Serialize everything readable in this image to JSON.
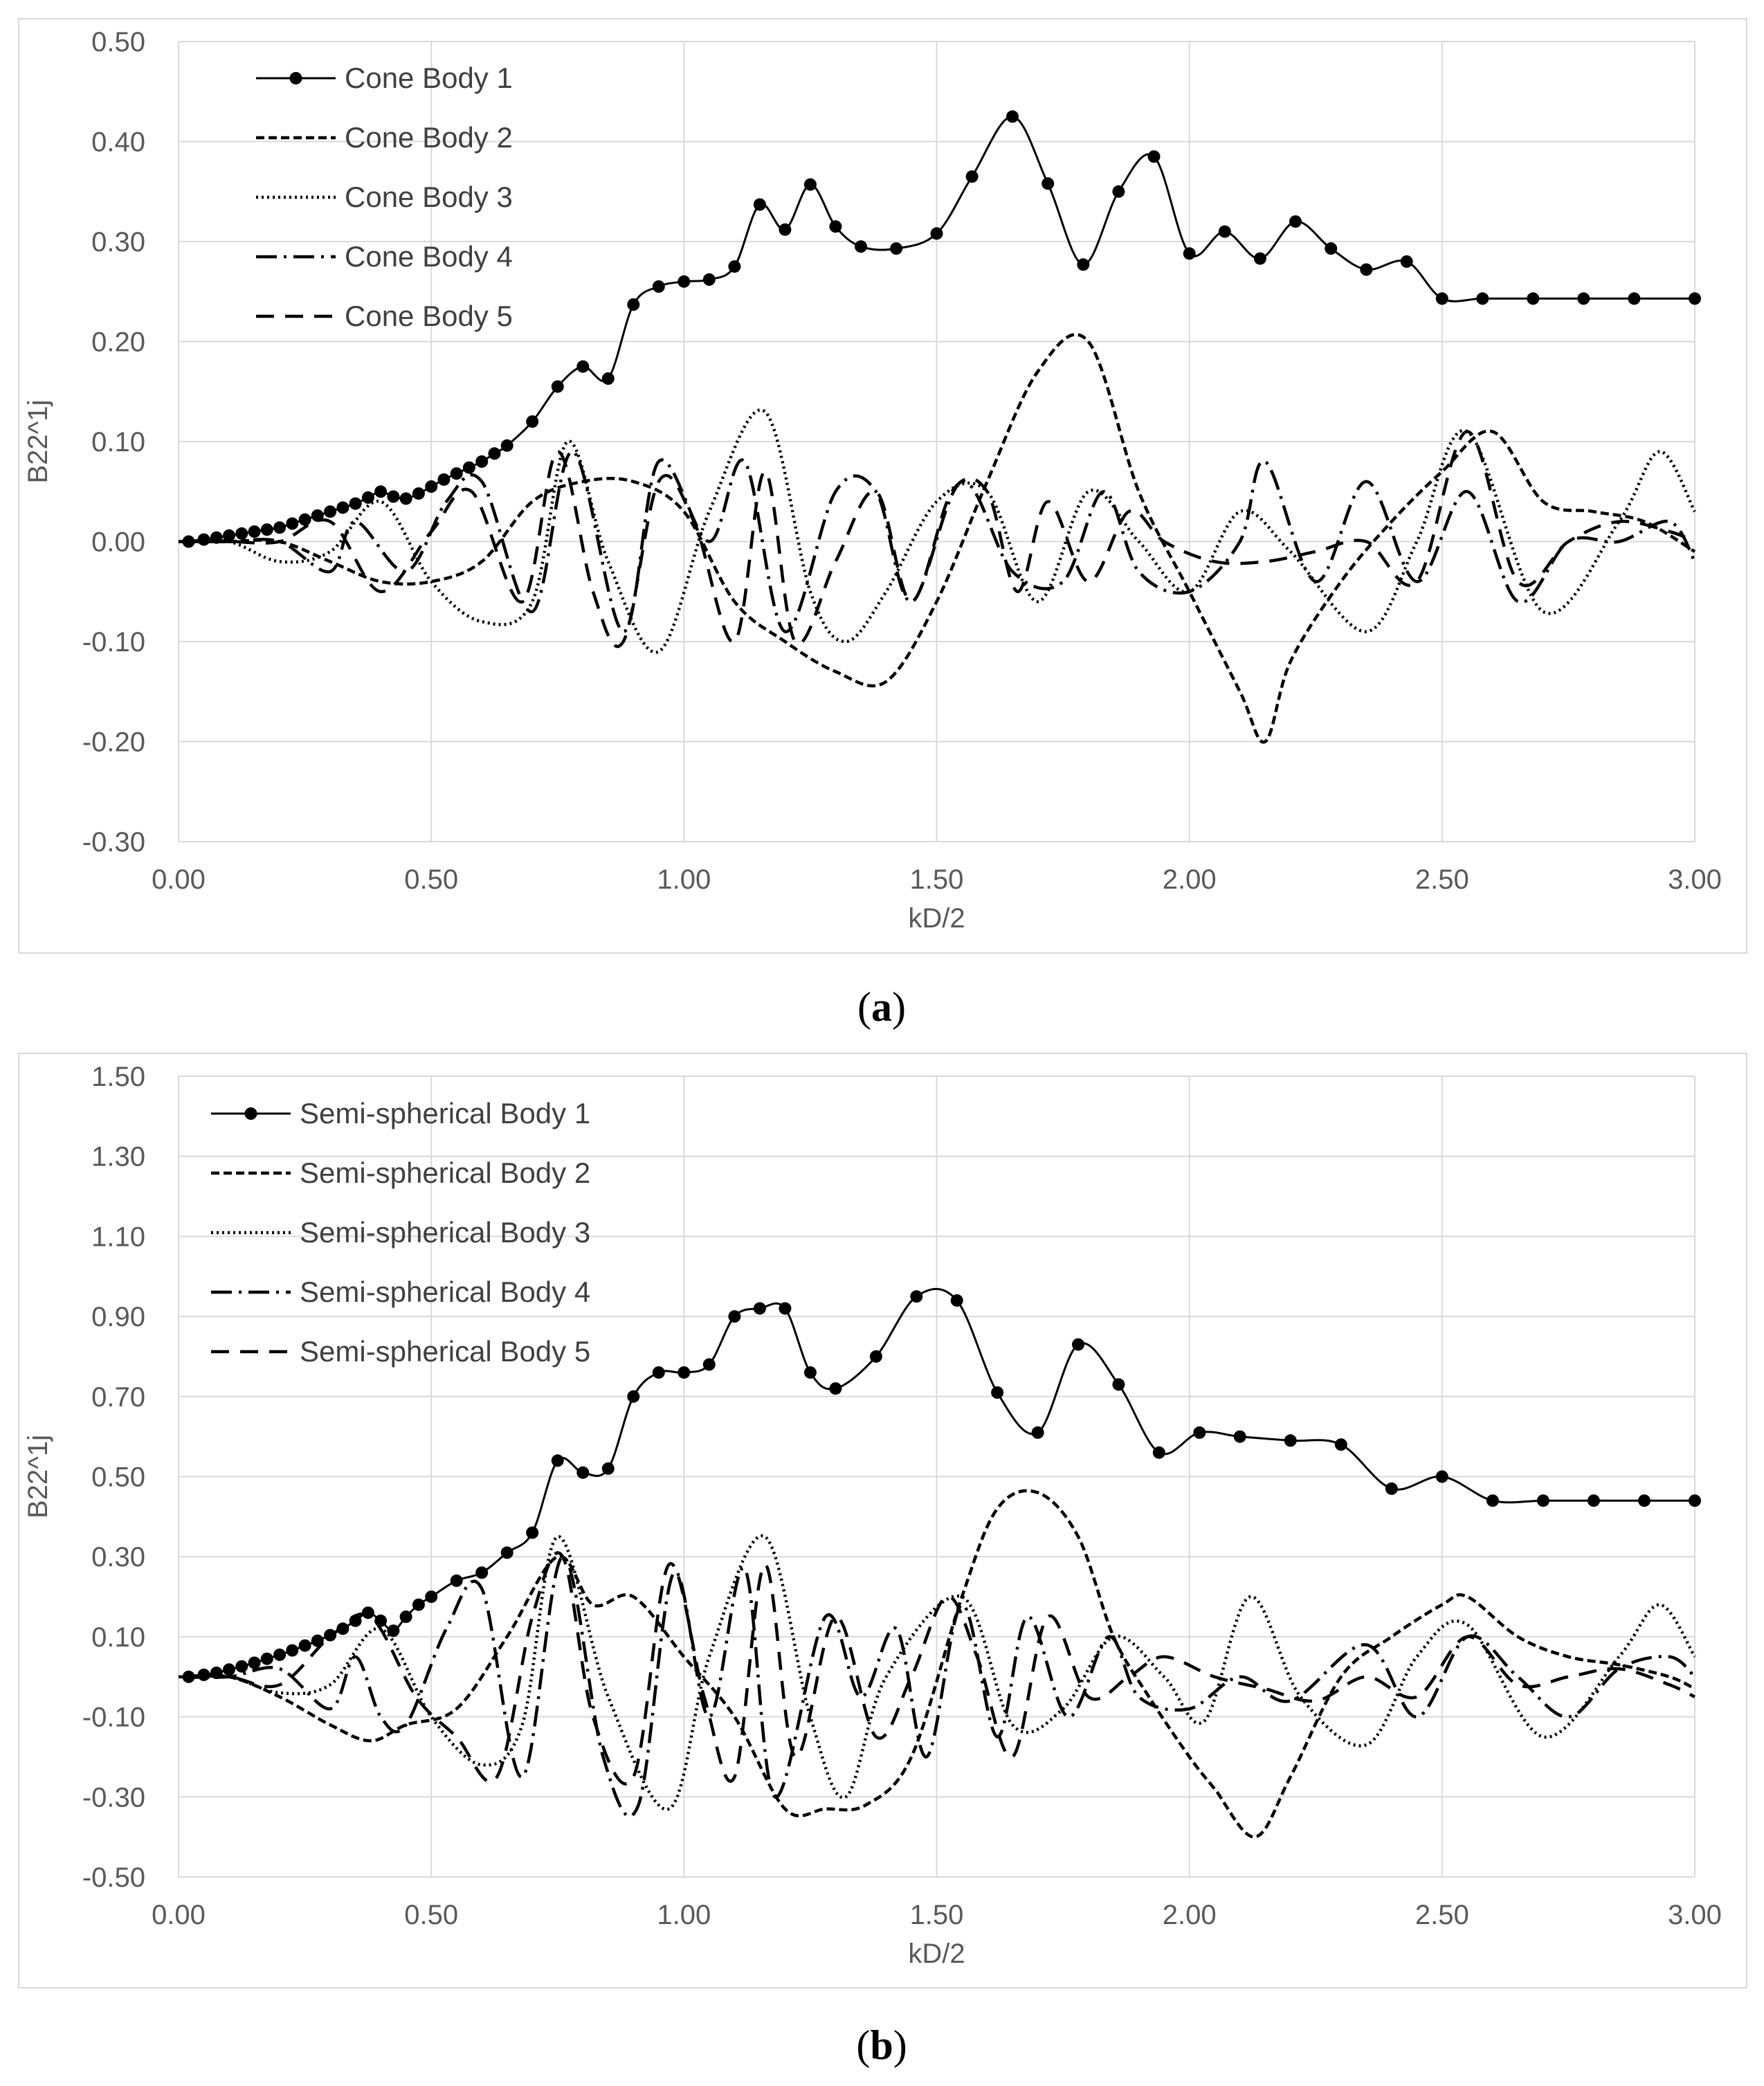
{
  "chart_data": [
    {
      "type": "line",
      "panel_label": "(a)",
      "panel_letter": "a",
      "xlabel": "kD/2",
      "ylabel": "B22^1j",
      "xlim": [
        0,
        3
      ],
      "ylim": [
        -0.3,
        0.5
      ],
      "xticks": [
        0,
        0.5,
        1,
        1.5,
        2,
        2.5,
        3
      ],
      "yticks": [
        -0.3,
        -0.2,
        -0.1,
        0,
        0.1,
        0.2,
        0.3,
        0.4,
        0.5
      ],
      "xtick_labels": [
        "0.00",
        "0.50",
        "1.00",
        "1.50",
        "2.00",
        "2.50",
        "3.00"
      ],
      "ytick_labels": [
        "-0.30",
        "-0.20",
        "-0.10",
        "0.00",
        "0.10",
        "0.20",
        "0.30",
        "0.40",
        "0.50"
      ],
      "grid": true,
      "legend_position": "top-left",
      "series": [
        {
          "name": "Cone Body 1",
          "style": "solid-markers",
          "x": [
            0.02,
            0.05,
            0.075,
            0.1,
            0.125,
            0.15,
            0.175,
            0.2,
            0.225,
            0.25,
            0.275,
            0.3,
            0.325,
            0.35,
            0.375,
            0.4,
            0.425,
            0.45,
            0.475,
            0.5,
            0.525,
            0.55,
            0.575,
            0.6,
            0.625,
            0.65,
            0.7,
            0.75,
            0.8,
            0.85,
            0.9,
            0.95,
            1.0,
            1.05,
            1.1,
            1.15,
            1.2,
            1.25,
            1.3,
            1.35,
            1.42,
            1.5,
            1.57,
            1.65,
            1.72,
            1.79,
            1.86,
            1.93,
            2.0,
            2.07,
            2.14,
            2.21,
            2.28,
            2.35,
            2.43,
            2.5,
            2.58,
            2.68,
            2.78,
            2.88,
            3.0
          ],
          "y": [
            0.0,
            0.002,
            0.004,
            0.006,
            0.008,
            0.01,
            0.012,
            0.014,
            0.018,
            0.022,
            0.026,
            0.03,
            0.034,
            0.038,
            0.044,
            0.05,
            0.045,
            0.043,
            0.048,
            0.055,
            0.062,
            0.068,
            0.074,
            0.08,
            0.088,
            0.096,
            0.12,
            0.155,
            0.175,
            0.163,
            0.237,
            0.255,
            0.26,
            0.262,
            0.275,
            0.337,
            0.312,
            0.357,
            0.315,
            0.295,
            0.293,
            0.308,
            0.365,
            0.425,
            0.358,
            0.277,
            0.35,
            0.385,
            0.288,
            0.31,
            0.283,
            0.32,
            0.293,
            0.272,
            0.28,
            0.243,
            0.243,
            0.243,
            0.243,
            0.243,
            0.243
          ]
        },
        {
          "name": "Cone Body 2",
          "style": "short-dash",
          "x": [
            0.0,
            0.1,
            0.2,
            0.3,
            0.4,
            0.5,
            0.6,
            0.7,
            0.8,
            0.9,
            1.0,
            1.1,
            1.2,
            1.3,
            1.4,
            1.5,
            1.6,
            1.7,
            1.8,
            1.9,
            2.0,
            2.1,
            2.15,
            2.2,
            2.3,
            2.4,
            2.5,
            2.6,
            2.7,
            2.8,
            2.9,
            3.0
          ],
          "y": [
            0.0,
            0.0,
            0.0,
            -0.02,
            -0.04,
            -0.04,
            -0.02,
            0.04,
            0.06,
            0.06,
            0.03,
            -0.06,
            -0.1,
            -0.13,
            -0.14,
            -0.06,
            0.06,
            0.17,
            0.2,
            0.05,
            -0.05,
            -0.15,
            -0.2,
            -0.12,
            -0.04,
            0.02,
            0.07,
            0.11,
            0.04,
            0.03,
            0.02,
            -0.01
          ]
        },
        {
          "name": "Cone Body 3",
          "style": "dotted",
          "x": [
            0.0,
            0.1,
            0.2,
            0.3,
            0.4,
            0.5,
            0.6,
            0.7,
            0.77,
            0.85,
            0.95,
            1.05,
            1.16,
            1.25,
            1.32,
            1.4,
            1.5,
            1.6,
            1.7,
            1.8,
            1.9,
            2.0,
            2.1,
            2.2,
            2.35,
            2.45,
            2.55,
            2.7,
            2.85,
            2.93,
            3.0
          ],
          "y": [
            0.0,
            0.0,
            -0.02,
            -0.01,
            0.04,
            -0.04,
            -0.08,
            -0.06,
            0.1,
            -0.02,
            -0.11,
            0.03,
            0.13,
            -0.05,
            -0.1,
            -0.05,
            0.04,
            0.05,
            -0.06,
            0.05,
            0.0,
            -0.05,
            0.03,
            -0.01,
            -0.09,
            0.0,
            0.11,
            -0.07,
            0.02,
            0.09,
            0.03
          ]
        },
        {
          "name": "Cone Body 4",
          "style": "dash-dot",
          "x": [
            0.0,
            0.1,
            0.2,
            0.3,
            0.35,
            0.45,
            0.53,
            0.6,
            0.7,
            0.78,
            0.88,
            0.95,
            1.05,
            1.12,
            1.2,
            1.3,
            1.38,
            1.45,
            1.55,
            1.65,
            1.75,
            1.83,
            1.9,
            2.0,
            2.1,
            2.15,
            2.25,
            2.35,
            2.45,
            2.55,
            2.65,
            2.75,
            2.85,
            2.95,
            3.0
          ],
          "y": [
            0.0,
            0.0,
            0.0,
            -0.03,
            0.02,
            -0.03,
            0.04,
            0.06,
            -0.07,
            0.09,
            -0.09,
            0.08,
            0.0,
            0.08,
            -0.09,
            0.05,
            0.05,
            -0.06,
            0.06,
            -0.03,
            -0.04,
            0.05,
            -0.03,
            -0.05,
            0.0,
            0.08,
            -0.04,
            0.06,
            -0.04,
            0.05,
            -0.06,
            0.0,
            0.0,
            0.02,
            -0.02
          ]
        },
        {
          "name": "Cone Body 5",
          "style": "long-dash",
          "x": [
            0.0,
            0.1,
            0.2,
            0.3,
            0.4,
            0.5,
            0.58,
            0.68,
            0.75,
            0.82,
            0.88,
            0.95,
            1.02,
            1.1,
            1.16,
            1.22,
            1.3,
            1.38,
            1.45,
            1.53,
            1.6,
            1.66,
            1.72,
            1.8,
            1.88,
            1.95,
            2.05,
            2.15,
            2.25,
            2.35,
            2.45,
            2.55,
            2.65,
            2.75,
            2.85,
            2.95,
            3.0
          ],
          "y": [
            0.0,
            0.0,
            0.0,
            0.02,
            -0.05,
            0.01,
            0.05,
            -0.06,
            0.09,
            -0.05,
            -0.1,
            0.06,
            0.02,
            -0.1,
            0.07,
            -0.1,
            -0.02,
            0.05,
            -0.06,
            0.05,
            0.05,
            -0.05,
            0.04,
            -0.04,
            0.03,
            0.0,
            -0.02,
            -0.02,
            -0.01,
            0.0,
            -0.04,
            0.11,
            -0.04,
            0.0,
            0.02,
            0.01,
            0.0
          ]
        }
      ]
    },
    {
      "type": "line",
      "panel_label": "(b)",
      "panel_letter": "b",
      "xlabel": "kD/2",
      "ylabel": "B22^1j",
      "xlim": [
        0,
        3
      ],
      "ylim": [
        -0.5,
        1.5
      ],
      "xticks": [
        0,
        0.5,
        1,
        1.5,
        2,
        2.5,
        3
      ],
      "yticks": [
        -0.5,
        -0.3,
        -0.1,
        0.1,
        0.3,
        0.5,
        0.7,
        0.9,
        1.1,
        1.3,
        1.5
      ],
      "xtick_labels": [
        "0.00",
        "0.50",
        "1.00",
        "1.50",
        "2.00",
        "2.50",
        "3.00"
      ],
      "ytick_labels": [
        "-0.50",
        "-0.30",
        "-0.10",
        "0.10",
        "0.30",
        "0.50",
        "0.70",
        "0.90",
        "1.10",
        "1.30",
        "1.50"
      ],
      "grid": true,
      "legend_position": "top-left",
      "series": [
        {
          "name": "Semi-spherical Body 1",
          "style": "solid-markers",
          "x": [
            0.02,
            0.05,
            0.075,
            0.1,
            0.125,
            0.15,
            0.175,
            0.2,
            0.225,
            0.25,
            0.275,
            0.3,
            0.325,
            0.35,
            0.375,
            0.4,
            0.425,
            0.45,
            0.475,
            0.5,
            0.55,
            0.6,
            0.65,
            0.7,
            0.75,
            0.8,
            0.85,
            0.9,
            0.95,
            1.0,
            1.05,
            1.1,
            1.15,
            1.2,
            1.25,
            1.3,
            1.38,
            1.46,
            1.54,
            1.62,
            1.7,
            1.78,
            1.86,
            1.94,
            2.02,
            2.1,
            2.2,
            2.3,
            2.4,
            2.5,
            2.6,
            2.7,
            2.8,
            2.9,
            3.0
          ],
          "y": [
            0.0,
            0.005,
            0.01,
            0.018,
            0.026,
            0.035,
            0.045,
            0.055,
            0.066,
            0.078,
            0.09,
            0.104,
            0.12,
            0.14,
            0.16,
            0.14,
            0.115,
            0.15,
            0.18,
            0.2,
            0.24,
            0.26,
            0.31,
            0.36,
            0.54,
            0.51,
            0.52,
            0.7,
            0.76,
            0.76,
            0.78,
            0.9,
            0.92,
            0.92,
            0.76,
            0.72,
            0.8,
            0.95,
            0.94,
            0.71,
            0.61,
            0.83,
            0.73,
            0.56,
            0.61,
            0.6,
            0.59,
            0.58,
            0.47,
            0.5,
            0.44,
            0.44,
            0.44,
            0.44,
            0.44
          ]
        },
        {
          "name": "Semi-spherical Body 2",
          "style": "short-dash",
          "x": [
            0.0,
            0.1,
            0.2,
            0.3,
            0.38,
            0.45,
            0.55,
            0.65,
            0.75,
            0.82,
            0.9,
            1.0,
            1.1,
            1.2,
            1.28,
            1.36,
            1.45,
            1.55,
            1.62,
            1.7,
            1.78,
            1.85,
            1.92,
            2.0,
            2.05,
            2.13,
            2.2,
            2.3,
            2.4,
            2.5,
            2.55,
            2.65,
            2.75,
            2.85,
            2.95,
            3.0
          ],
          "y": [
            0.0,
            0.0,
            -0.05,
            -0.12,
            -0.16,
            -0.12,
            -0.08,
            0.1,
            0.3,
            0.18,
            0.2,
            0.05,
            -0.1,
            -0.33,
            -0.33,
            -0.32,
            -0.2,
            0.2,
            0.42,
            0.46,
            0.35,
            0.1,
            -0.05,
            -0.2,
            -0.28,
            -0.4,
            -0.25,
            0.0,
            0.1,
            0.18,
            0.2,
            0.1,
            0.05,
            0.03,
            0.0,
            -0.03
          ]
        },
        {
          "name": "Semi-spherical Body 3",
          "style": "dotted",
          "x": [
            0.0,
            0.1,
            0.2,
            0.3,
            0.4,
            0.5,
            0.6,
            0.68,
            0.75,
            0.85,
            0.97,
            1.05,
            1.16,
            1.25,
            1.32,
            1.4,
            1.55,
            1.65,
            1.75,
            1.85,
            1.95,
            2.03,
            2.12,
            2.22,
            2.35,
            2.45,
            2.55,
            2.7,
            2.85,
            2.93,
            3.0
          ],
          "y": [
            0.0,
            0.0,
            -0.04,
            -0.02,
            0.12,
            -0.1,
            -0.22,
            -0.12,
            0.35,
            -0.05,
            -0.33,
            0.05,
            0.35,
            -0.1,
            -0.3,
            0.0,
            0.2,
            -0.12,
            -0.08,
            0.1,
            0.0,
            -0.11,
            0.2,
            -0.05,
            -0.17,
            0.05,
            0.13,
            -0.15,
            0.05,
            0.18,
            0.05
          ]
        },
        {
          "name": "Semi-spherical Body 4",
          "style": "dash-dot",
          "x": [
            0.0,
            0.1,
            0.2,
            0.3,
            0.35,
            0.4,
            0.45,
            0.53,
            0.6,
            0.68,
            0.76,
            0.84,
            0.91,
            0.98,
            1.05,
            1.12,
            1.18,
            1.28,
            1.35,
            1.42,
            1.48,
            1.55,
            1.62,
            1.68,
            1.76,
            1.84,
            1.9,
            2.0,
            2.1,
            2.2,
            2.35,
            2.45,
            2.55,
            2.65,
            2.75,
            2.85,
            2.95,
            3.0
          ],
          "y": [
            0.0,
            0.0,
            0.02,
            -0.08,
            0.05,
            -0.1,
            -0.12,
            0.12,
            0.22,
            -0.25,
            0.3,
            -0.2,
            -0.32,
            0.26,
            -0.1,
            0.27,
            -0.3,
            0.15,
            -0.05,
            0.12,
            -0.2,
            0.18,
            -0.15,
            0.15,
            -0.1,
            0.1,
            -0.05,
            -0.08,
            0.0,
            -0.06,
            0.08,
            -0.1,
            0.1,
            0.0,
            -0.1,
            0.02,
            0.05,
            0.0
          ]
        },
        {
          "name": "Semi-spherical Body 5",
          "style": "long-dash",
          "x": [
            0.0,
            0.1,
            0.2,
            0.3,
            0.38,
            0.47,
            0.55,
            0.63,
            0.7,
            0.76,
            0.82,
            0.9,
            0.97,
            1.04,
            1.1,
            1.16,
            1.22,
            1.3,
            1.38,
            1.45,
            1.52,
            1.58,
            1.65,
            1.72,
            1.8,
            1.88,
            1.95,
            2.05,
            2.15,
            2.25,
            2.35,
            2.45,
            2.55,
            2.65,
            2.75,
            2.85,
            2.95,
            3.0
          ],
          "y": [
            0.0,
            0.0,
            -0.02,
            0.1,
            0.15,
            -0.05,
            -0.15,
            -0.25,
            0.15,
            0.3,
            -0.1,
            -0.25,
            0.28,
            -0.05,
            -0.25,
            0.28,
            -0.2,
            0.15,
            -0.15,
            0.0,
            0.2,
            0.05,
            -0.2,
            0.15,
            -0.05,
            0.0,
            0.05,
            0.0,
            -0.03,
            -0.06,
            0.0,
            -0.05,
            0.1,
            -0.02,
            0.0,
            0.02,
            -0.02,
            -0.05
          ]
        }
      ]
    }
  ]
}
